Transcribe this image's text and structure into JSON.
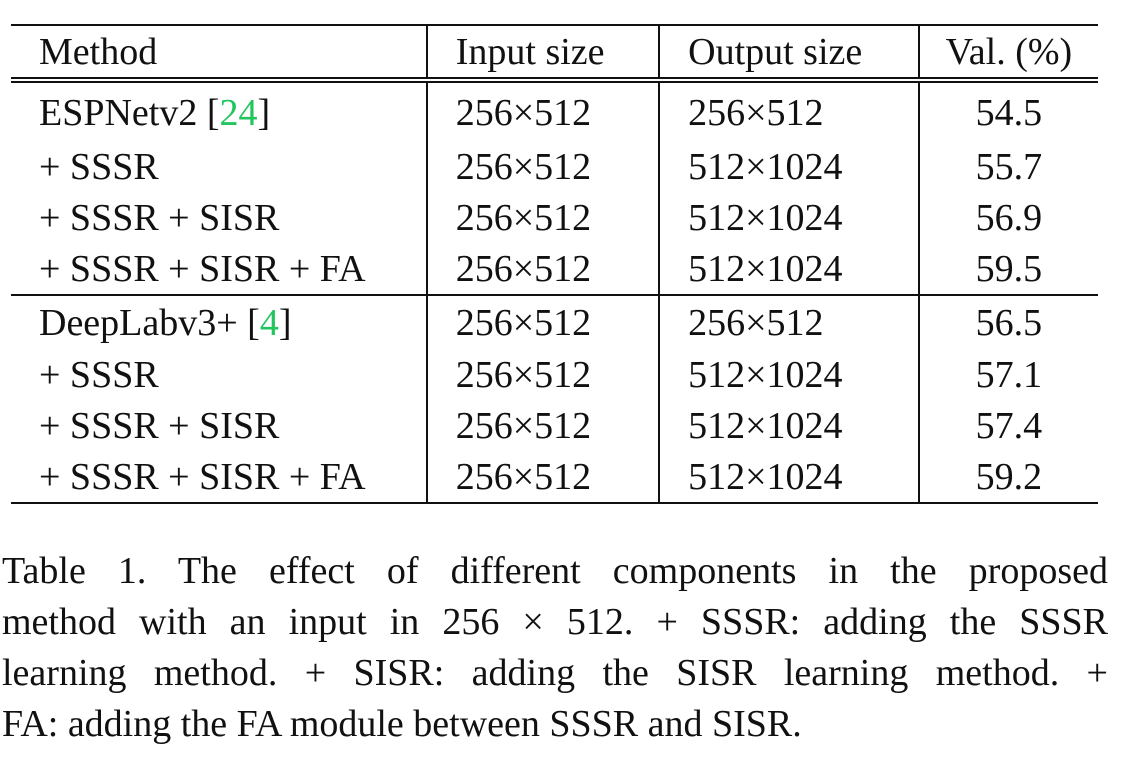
{
  "table": {
    "headers": [
      "Method",
      "Input size",
      "Output size",
      "Val. (%)"
    ],
    "groups": [
      {
        "rows": [
          {
            "method": "ESPNetv2 [",
            "ref": "24",
            "method_suffix": "]",
            "input": "256×512",
            "output": "256×512",
            "val": "54.5"
          },
          {
            "method": "+ SSSR",
            "input": "256×512",
            "output": "512×1024",
            "val": "55.7"
          },
          {
            "method": "+ SSSR + SISR",
            "input": "256×512",
            "output": "512×1024",
            "val": "56.9"
          },
          {
            "method": "+ SSSR + SISR + FA",
            "input": "256×512",
            "output": "512×1024",
            "val": "59.5"
          }
        ]
      },
      {
        "rows": [
          {
            "method": "DeepLabv3+ [",
            "ref": "4",
            "method_suffix": "]",
            "input": "256×512",
            "output": "256×512",
            "val": "56.5"
          },
          {
            "method": "+ SSSR",
            "input": "256×512",
            "output": "512×1024",
            "val": "57.1"
          },
          {
            "method": "+ SSSR + SISR",
            "input": "256×512",
            "output": "512×1024",
            "val": "57.4"
          },
          {
            "method": "+ SSSR + SISR + FA",
            "input": "256×512",
            "output": "512×1024",
            "val": "59.2"
          }
        ]
      }
    ]
  },
  "caption": {
    "lines": [
      "Table 1. The effect of different components in the proposed",
      "method with an input in 256 × 512. + SSSR: adding the SSSR",
      "learning method. + SISR: adding the SISR learning method. +",
      "FA: adding the FA module between SSSR and SISR."
    ]
  },
  "colors": {
    "citation": "#22c55e",
    "text": "#111111"
  }
}
